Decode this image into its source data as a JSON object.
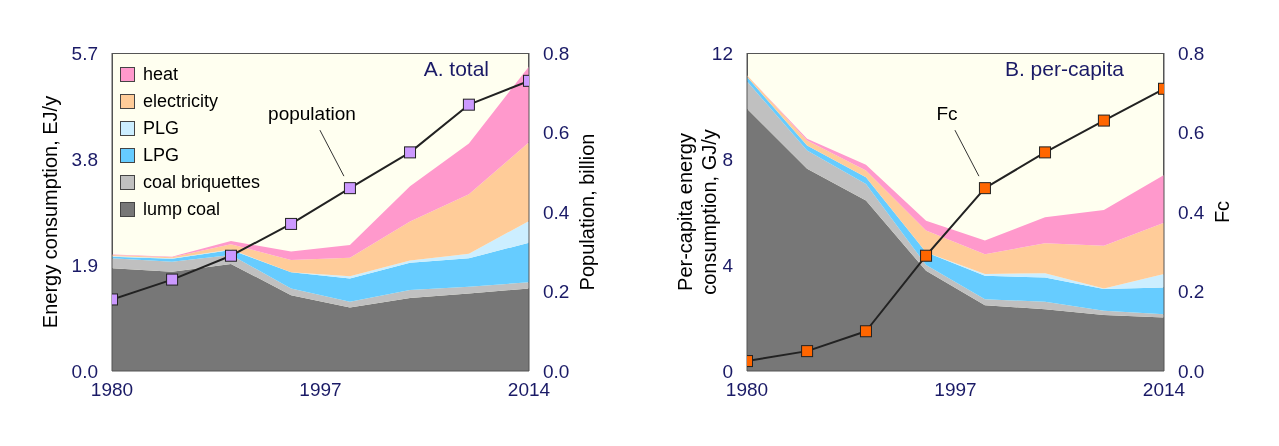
{
  "chart_data": [
    {
      "type": "area",
      "stacked": true,
      "annotations": [
        "A. total"
      ],
      "ylabel": "Energy consumption, EJ/y",
      "y2label": "Population, billion",
      "legend": "top left",
      "x": [
        1980,
        1984.9,
        1989.7,
        1994.6,
        1999.4,
        2004.3,
        2009.1,
        2014
      ],
      "xlim": [
        1980,
        2014
      ],
      "xticks": [
        1980,
        1997,
        2014
      ],
      "ylim": [
        0,
        5.7
      ],
      "yticks": [
        {
          "value": 0,
          "label": "0.0"
        },
        1.9,
        3.8,
        5.7
      ],
      "y2lim": [
        0,
        0.8
      ],
      "y2ticks": [
        {
          "value": 0,
          "label": "0.0"
        },
        0.2,
        0.4,
        0.6,
        0.8
      ],
      "series": [
        {
          "name": "lump coal",
          "color": "#777777",
          "values": [
            1.84,
            1.78,
            1.92,
            1.36,
            1.14,
            1.31,
            1.39,
            1.48
          ]
        },
        {
          "name": "coal briquettes",
          "color": "#c0c0c0",
          "values": [
            0.18,
            0.18,
            0.16,
            0.12,
            0.1,
            0.14,
            0.12,
            0.11
          ]
        },
        {
          "name": "LPG",
          "color": "#66ccff",
          "values": [
            0.03,
            0.05,
            0.09,
            0.29,
            0.42,
            0.49,
            0.51,
            0.71
          ]
        },
        {
          "name": "PLG",
          "color": "#cceeff",
          "values": [
            0.01,
            0.01,
            0.01,
            0,
            0.04,
            0.04,
            0.08,
            0.39
          ]
        },
        {
          "name": "electricity",
          "color": "#ffcc99",
          "values": [
            0.02,
            0.02,
            0.09,
            0.22,
            0.33,
            0.7,
            1.07,
            1.41
          ]
        },
        {
          "name": "heat",
          "color": "#ff99cc",
          "values": [
            0.01,
            0.01,
            0.06,
            0.15,
            0.23,
            0.63,
            0.91,
            1.36
          ]
        },
        {
          "name": "population",
          "type": "line",
          "axis": "y2",
          "marker": "square",
          "color": "#cc99ff",
          "values": [
            0.18,
            0.23,
            0.29,
            0.37,
            0.46,
            0.55,
            0.67,
            0.73
          ]
        }
      ]
    },
    {
      "type": "area",
      "stacked": true,
      "annotations": [
        "B. per-capita"
      ],
      "ylabel": "Per-capita energy\nconsumption, GJ/y",
      "y2label": "Fc",
      "legend": false,
      "x": [
        1980,
        1984.9,
        1989.7,
        1994.6,
        1999.4,
        2004.3,
        2009.1,
        2014
      ],
      "xlim": [
        1980,
        2014
      ],
      "xticks": [
        1980,
        1997,
        2014
      ],
      "ylim": [
        0,
        12
      ],
      "yticks": [
        0,
        4,
        8,
        12
      ],
      "y2lim": [
        0,
        0.8
      ],
      "y2ticks": [
        {
          "value": 0,
          "label": "0.0"
        },
        0.2,
        0.4,
        0.6,
        0.8
      ],
      "series": [
        {
          "color": "#777777",
          "values": [
            9.9,
            7.63,
            6.43,
            3.78,
            2.48,
            2.33,
            2.11,
            2.02
          ]
        },
        {
          "color": "#c0c0c0",
          "values": [
            1.03,
            0.69,
            0.63,
            0.22,
            0.23,
            0.28,
            0.16,
            0.12
          ]
        },
        {
          "color": "#66ccff",
          "values": [
            0.17,
            0.19,
            0.25,
            0.48,
            0.88,
            0.92,
            0.82,
            1.01
          ]
        },
        {
          "color": "#cceeff",
          "values": [
            0,
            0,
            0,
            0,
            0.07,
            0.16,
            0.02,
            0.51
          ]
        },
        {
          "color": "#ffcc99",
          "values": [
            0.06,
            0.19,
            0.26,
            0.82,
            0.75,
            1.13,
            1.62,
            1.93
          ]
        },
        {
          "color": "#ff99cc",
          "values": [
            0,
            0.06,
            0.21,
            0.37,
            0.51,
            0.98,
            1.35,
            1.81
          ]
        },
        {
          "name": "Fc",
          "type": "line",
          "axis": "y2",
          "marker": "square",
          "color": "#ff6600",
          "values": [
            0.025,
            0.05,
            0.1,
            0.29,
            0.46,
            0.55,
            0.63,
            0.71
          ]
        }
      ]
    }
  ]
}
